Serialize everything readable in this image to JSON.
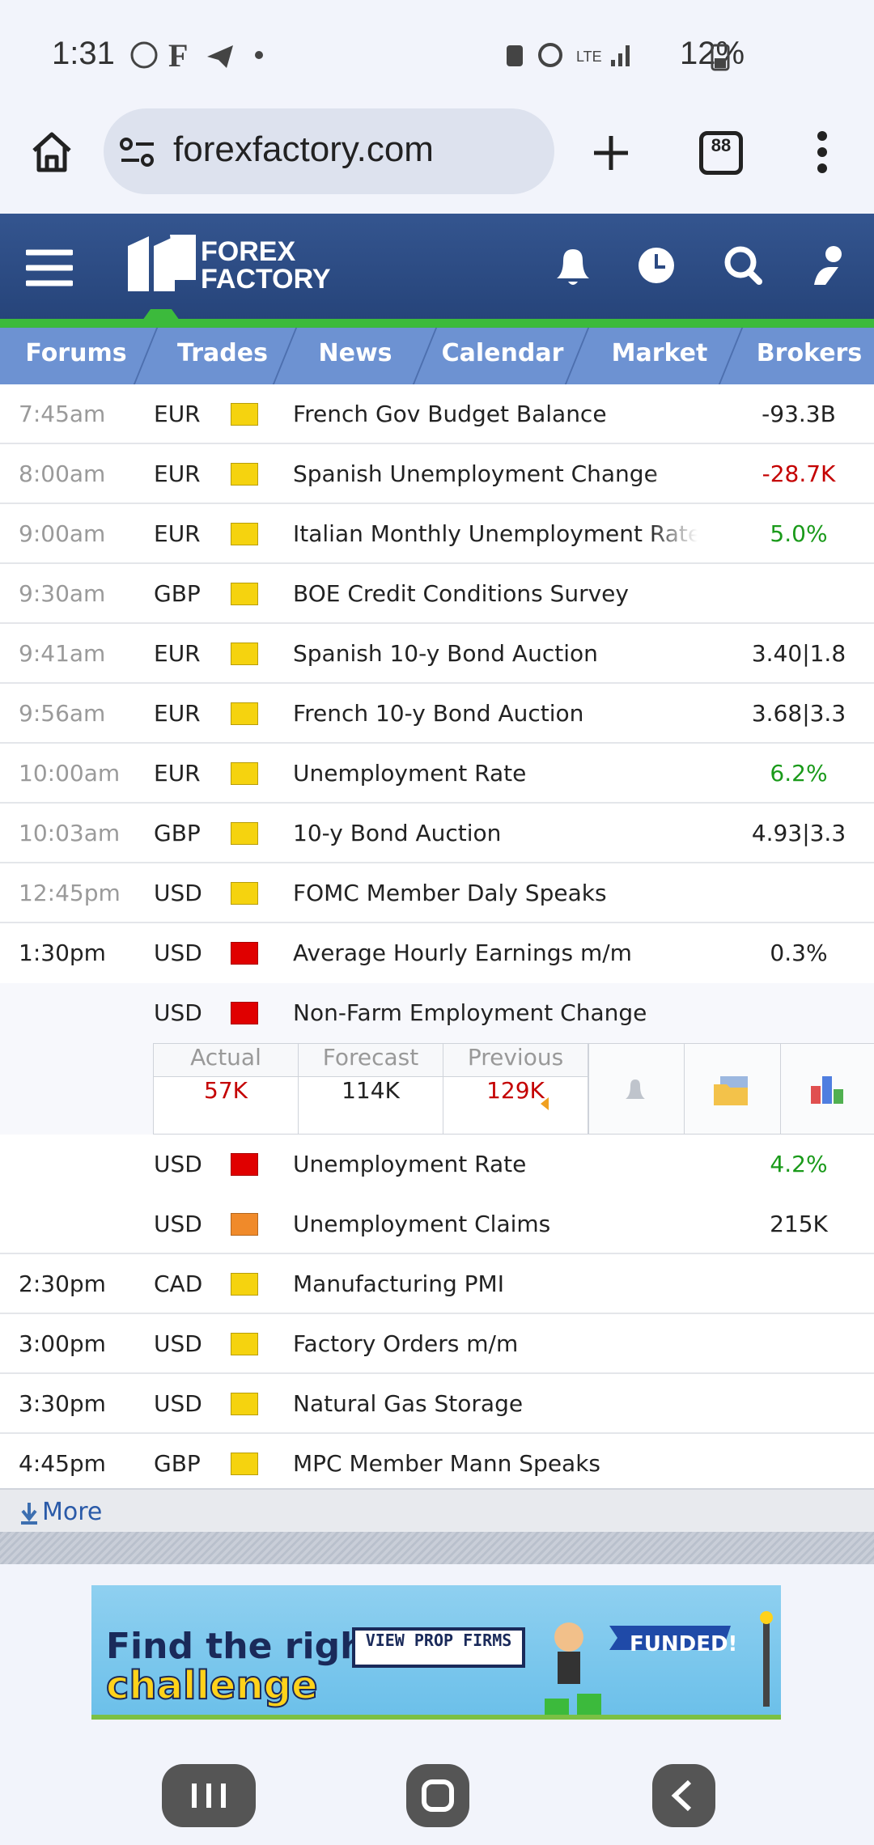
{
  "status_bar": {
    "time": "1:31",
    "battery": "12%"
  },
  "browser": {
    "url": "forexfactory.com",
    "tab_count": "88"
  },
  "site": {
    "logo_line1": "FOREX",
    "logo_line2": "FACTORY"
  },
  "nav_tabs": [
    "Forums",
    "Trades",
    "News",
    "Calendar",
    "Market",
    "Brokers"
  ],
  "calendar": {
    "rows": [
      {
        "time": "7:45am",
        "time_color": "#9a9a9a",
        "currency": "EUR",
        "impact_color": "#f5d30f",
        "event": "French Gov Budget Balance",
        "value": "-93.3B",
        "value_color": "#222222"
      },
      {
        "time": "8:00am",
        "time_color": "#9a9a9a",
        "currency": "EUR",
        "impact_color": "#f5d30f",
        "event": "Spanish Unemployment Change",
        "value": "-28.7K",
        "value_color": "#c40000"
      },
      {
        "time": "9:00am",
        "time_color": "#9a9a9a",
        "currency": "EUR",
        "impact_color": "#f5d30f",
        "event": "Italian Monthly Unemployment Rate",
        "value": "5.0%",
        "value_color": "#1a9a1a"
      },
      {
        "time": "9:30am",
        "time_color": "#9a9a9a",
        "currency": "GBP",
        "impact_color": "#f5d30f",
        "event": "BOE Credit Conditions Survey"
      },
      {
        "time": "9:41am",
        "time_color": "#9a9a9a",
        "currency": "EUR",
        "impact_color": "#f5d30f",
        "event": "Spanish 10-y Bond Auction",
        "value": "3.40|1.8",
        "value_color": "#222222"
      },
      {
        "time": "9:56am",
        "time_color": "#9a9a9a",
        "currency": "EUR",
        "impact_color": "#f5d30f",
        "event": "French 10-y Bond Auction",
        "value": "3.68|3.3",
        "value_color": "#222222"
      },
      {
        "time": "10:00am",
        "time_color": "#9a9a9a",
        "currency": "EUR",
        "impact_color": "#f5d30f",
        "event": "Unemployment Rate",
        "value": "6.2%",
        "value_color": "#1a9a1a"
      },
      {
        "time": "10:03am",
        "time_color": "#9a9a9a",
        "currency": "GBP",
        "impact_color": "#f5d30f",
        "event": "10-y Bond Auction",
        "value": "4.93|3.3",
        "value_color": "#222222"
      },
      {
        "time": "12:45pm",
        "time_color": "#9a9a9a",
        "currency": "USD",
        "impact_color": "#f5d30f",
        "event": "FOMC Member Daly Speaks"
      },
      {
        "time": "1:30pm",
        "time_color": "#222222",
        "currency": "USD",
        "impact_color": "#e00000",
        "event": "Average Hourly Earnings m/m",
        "value": "0.3%",
        "value_color": "#222222"
      },
      {
        "currency": "USD",
        "impact_color": "#e00000",
        "event": "Non-Farm Employment Change"
      },
      {
        "currency": "USD",
        "impact_color": "#e00000",
        "event": "Unemployment Rate",
        "value": "4.2%",
        "value_color": "#1a9a1a"
      },
      {
        "currency": "USD",
        "impact_color": "#f08a2a",
        "event": "Unemployment Claims",
        "value": "215K",
        "value_color": "#222222"
      },
      {
        "time": "2:30pm",
        "time_color": "#222222",
        "currency": "CAD",
        "impact_color": "#f5d30f",
        "event": "Manufacturing PMI"
      },
      {
        "time": "3:00pm",
        "time_color": "#222222",
        "currency": "USD",
        "impact_color": "#f5d30f",
        "event": "Factory Orders m/m"
      },
      {
        "time": "3:30pm",
        "time_color": "#222222",
        "currency": "USD",
        "impact_color": "#f5d30f",
        "event": "Natural Gas Storage"
      },
      {
        "time": "4:45pm",
        "time_color": "#222222",
        "currency": "GBP",
        "impact_color": "#f5d30f",
        "event": "MPC Member Mann Speaks"
      }
    ],
    "detail": {
      "after_row": 10,
      "headers": [
        "Actual",
        "Forecast",
        "Previous"
      ],
      "values": [
        {
          "text": "57K",
          "color": "#c40000"
        },
        {
          "text": "114K",
          "color": "#222222"
        },
        {
          "text": "129K",
          "color": "#c40000"
        }
      ]
    },
    "more": "More"
  },
  "ad": {
    "line1": "Find the right",
    "line2": "challenge",
    "button": "VIEW PROP FIRMS",
    "badge": "FUNDED!"
  }
}
